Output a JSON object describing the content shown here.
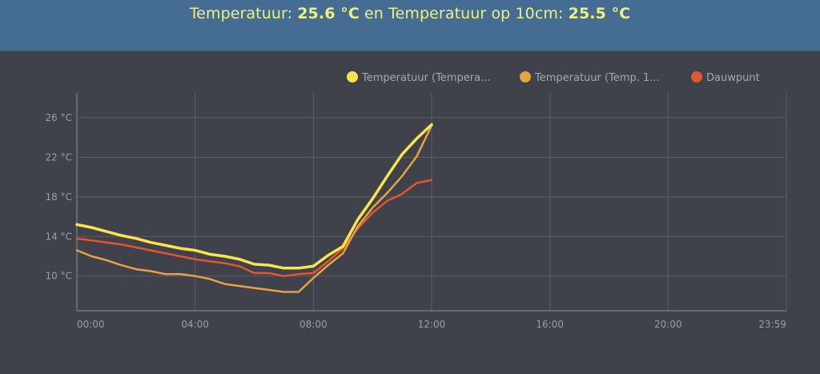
{
  "header": {
    "label1": "Temperatuur: ",
    "value1": "25.6 °C",
    "connector": " en Temperatuur op 10cm: ",
    "value2": "25.5 °C"
  },
  "colors": {
    "background": "#40424b",
    "header_bg": "#456c93",
    "header_text": "#eef27a",
    "series_temp": "#f9e449",
    "series_temp10": "#e7a33f",
    "series_dew": "#e2572e",
    "grid": "#5b5e68",
    "tick_text": "#9a9da6"
  },
  "chart_data": {
    "type": "line",
    "x_unit": "hours",
    "xlim": [
      0,
      24
    ],
    "ylim": [
      6.5,
      28.5
    ],
    "x_ticks": [
      {
        "x": 0,
        "label": "00:00"
      },
      {
        "x": 4,
        "label": "04:00"
      },
      {
        "x": 8,
        "label": "08:00"
      },
      {
        "x": 12,
        "label": "12:00"
      },
      {
        "x": 16,
        "label": "16:00"
      },
      {
        "x": 20,
        "label": "20:00"
      },
      {
        "x": 24,
        "label": "23:59"
      }
    ],
    "y_ticks": [
      {
        "y": 10,
        "label": "10 °C"
      },
      {
        "y": 14,
        "label": "14 °C"
      },
      {
        "y": 18,
        "label": "18 °C"
      },
      {
        "y": 22,
        "label": "22 °C"
      },
      {
        "y": 26,
        "label": "26 °C"
      }
    ],
    "legend_position": "top-right",
    "series": [
      {
        "name": "Temperatuur (Tempera...",
        "color": "#f9e449",
        "width": 3.5,
        "x": [
          0,
          0.5,
          1,
          1.5,
          2,
          2.5,
          3,
          3.5,
          4,
          4.5,
          5,
          5.5,
          6,
          6.5,
          7,
          7.5,
          8,
          8.5,
          9,
          9.5,
          10,
          10.5,
          11,
          11.5,
          12
        ],
        "y": [
          15.2,
          14.9,
          14.5,
          14.1,
          13.8,
          13.4,
          13.1,
          12.8,
          12.6,
          12.2,
          12.0,
          11.7,
          11.2,
          11.1,
          10.8,
          10.8,
          11.0,
          12.1,
          13.0,
          15.7,
          17.8,
          20.1,
          22.3,
          23.9,
          25.3
        ]
      },
      {
        "name": "Temperatuur (Temp. 1...",
        "color": "#e7a33f",
        "width": 2.5,
        "x": [
          0,
          0.5,
          1,
          1.5,
          2,
          2.5,
          3,
          3.5,
          4,
          4.5,
          5,
          5.5,
          6,
          6.5,
          7,
          7.5,
          8,
          8.5,
          9,
          9.5,
          10,
          10.5,
          11,
          11.5,
          12
        ],
        "y": [
          12.6,
          12.0,
          11.6,
          11.1,
          10.7,
          10.5,
          10.2,
          10.2,
          10.0,
          9.7,
          9.2,
          9.0,
          8.8,
          8.6,
          8.4,
          8.4,
          9.8,
          11.1,
          12.3,
          15.0,
          16.9,
          18.4,
          20.1,
          22.1,
          25.2
        ]
      },
      {
        "name": "Dauwpunt",
        "color": "#e2572e",
        "width": 2.5,
        "x": [
          0,
          0.5,
          1,
          1.5,
          2,
          2.5,
          3,
          3.5,
          4,
          4.5,
          5,
          5.5,
          6,
          6.5,
          7,
          7.5,
          8,
          8.5,
          9,
          9.5,
          10,
          10.5,
          11,
          11.5,
          12
        ],
        "y": [
          13.8,
          13.6,
          13.4,
          13.2,
          12.9,
          12.6,
          12.3,
          12.0,
          11.7,
          11.5,
          11.3,
          11.0,
          10.3,
          10.3,
          10.0,
          10.2,
          10.3,
          11.5,
          12.8,
          14.8,
          16.4,
          17.6,
          18.3,
          19.4,
          19.7
        ]
      }
    ]
  }
}
